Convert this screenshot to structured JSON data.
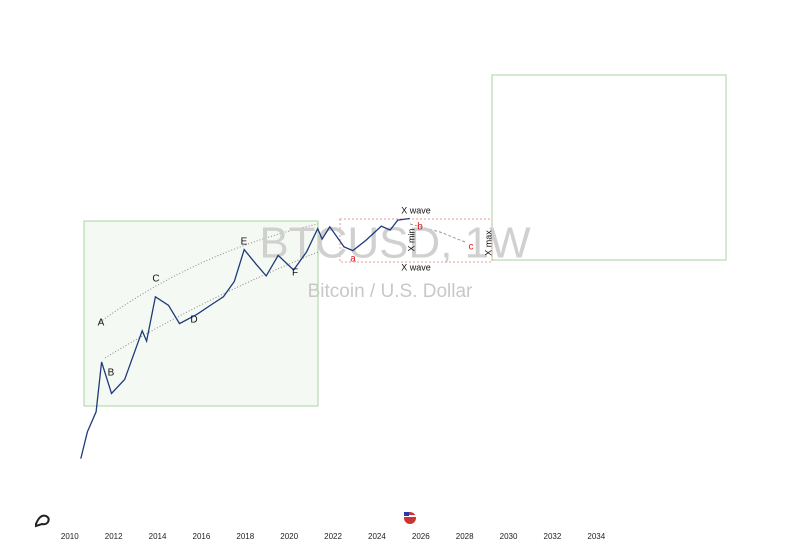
{
  "chart_data": {
    "type": "line",
    "title": "BTCUSD, 1W",
    "subtitle": "Bitcoin / U.S. Dollar",
    "log_scale": true,
    "color": "#1e3a7a",
    "x": [
      2010.5,
      2010.8,
      2011.2,
      2011.45,
      2011.9,
      2012.5,
      2013.3,
      2013.5,
      2013.9,
      2014.5,
      2015.0,
      2015.8,
      2016.5,
      2017.0,
      2017.5,
      2017.95,
      2018.5,
      2018.95,
      2019.5,
      2020.2,
      2020.8,
      2021.3,
      2021.5,
      2021.85,
      2022.5,
      2022.9,
      2023.5,
      2024.2,
      2024.6,
      2024.95,
      2025.5
    ],
    "values": [
      0.06,
      0.3,
      1,
      20,
      3,
      7,
      130,
      70,
      1000,
      600,
      200,
      350,
      650,
      1000,
      2500,
      17000,
      7000,
      3500,
      12000,
      5000,
      15000,
      60000,
      32000,
      67000,
      20000,
      16000,
      30000,
      70000,
      55000,
      100000,
      110000
    ],
    "xlim": [
      2007,
      2039
    ],
    "xticks": [
      2010,
      2012,
      2014,
      2016,
      2018,
      2020,
      2022,
      2024,
      2026,
      2028,
      2030,
      2032,
      2034
    ],
    "ylim": [
      0.005,
      5000000000
    ],
    "annotations": [
      "A",
      "B",
      "C",
      "D",
      "E",
      "F",
      "a",
      "b",
      "c",
      "X wave",
      "X wave",
      "X min",
      "X max"
    ]
  }
}
